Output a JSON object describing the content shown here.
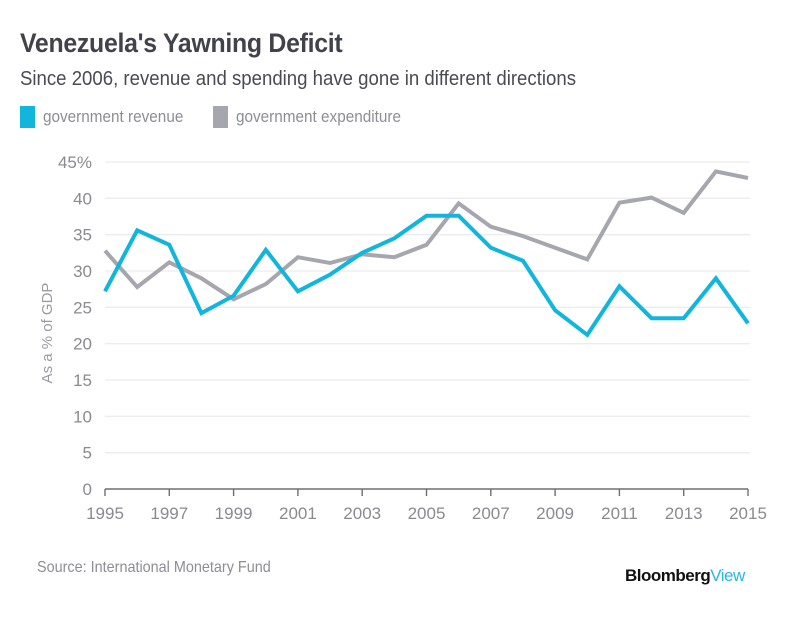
{
  "header": {
    "title": "Venezuela's Yawning Deficit",
    "subtitle": "Since 2006, revenue and spending have gone in different directions"
  },
  "legend": [
    {
      "label": "government revenue",
      "color": "#12b5db"
    },
    {
      "label": "government expenditure",
      "color": "#a6a6af"
    }
  ],
  "footer": {
    "source": "Source: International Monetary Fund",
    "brand_main": "Bloomberg",
    "brand_accent": "View"
  },
  "chart_data": {
    "type": "line",
    "title": "Venezuela's Yawning Deficit",
    "subtitle": "Since 2006, revenue and spending have gone in different directions",
    "xlabel": "",
    "ylabel": "As a % of GDP",
    "x": [
      1995,
      1996,
      1997,
      1998,
      1999,
      2000,
      2001,
      2002,
      2003,
      2004,
      2005,
      2006,
      2007,
      2008,
      2009,
      2010,
      2011,
      2012,
      2013,
      2014,
      2015
    ],
    "xlim": [
      1995,
      2015
    ],
    "ylim": [
      0,
      45
    ],
    "x_ticks": [
      1995,
      1997,
      1999,
      2001,
      2003,
      2005,
      2007,
      2009,
      2011,
      2013,
      2015
    ],
    "x_tick_labels": [
      "1995",
      "1997",
      "1999",
      "2001",
      "2003",
      "2005",
      "2007",
      "2009",
      "2011",
      "2013",
      "2015"
    ],
    "y_ticks": [
      0,
      5,
      10,
      15,
      20,
      25,
      30,
      35,
      40,
      45
    ],
    "y_tick_labels": [
      "0",
      "5",
      "10",
      "15",
      "20",
      "25",
      "30",
      "35",
      "40",
      "45%"
    ],
    "grid": true,
    "legend_position": "top-left",
    "series": [
      {
        "name": "government revenue",
        "color": "#12b5db",
        "values": [
          27.2,
          35.6,
          33.6,
          24.2,
          26.6,
          32.9,
          27.2,
          29.5,
          32.5,
          34.5,
          37.6,
          37.6,
          33.2,
          31.4,
          24.6,
          21.2,
          27.9,
          23.5,
          23.5,
          29.0,
          22.8
        ]
      },
      {
        "name": "government expenditure",
        "color": "#a6a6af",
        "values": [
          32.8,
          27.8,
          31.2,
          29.0,
          26.1,
          28.2,
          31.9,
          31.1,
          32.3,
          31.9,
          33.6,
          39.3,
          36.1,
          34.8,
          33.2,
          31.6,
          39.4,
          40.1,
          38.0,
          43.7,
          42.8
        ]
      }
    ]
  }
}
